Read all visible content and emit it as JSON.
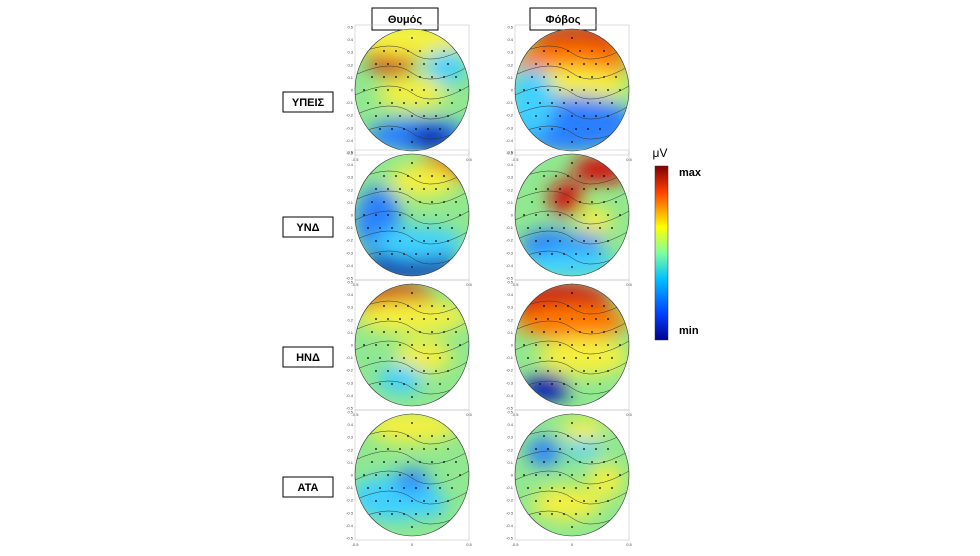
{
  "columns": [
    "Θυμός",
    "Φόβος"
  ],
  "rows": [
    "ΥΠΕΙΣ",
    "ΥΝΔ",
    "ΗΝΔ",
    "ΑΤΑ"
  ],
  "map_axis": {
    "yticks": [
      "0.5",
      "0.4",
      "0.3",
      "0.2",
      "0.1",
      "0",
      "-0.1",
      "-0.2",
      "-0.3",
      "-0.4",
      "-0.5"
    ],
    "xticks": [
      "-0.5",
      "0",
      "0.5"
    ]
  },
  "colorbar": {
    "unit": "μV",
    "max": "max",
    "min": "min"
  }
}
